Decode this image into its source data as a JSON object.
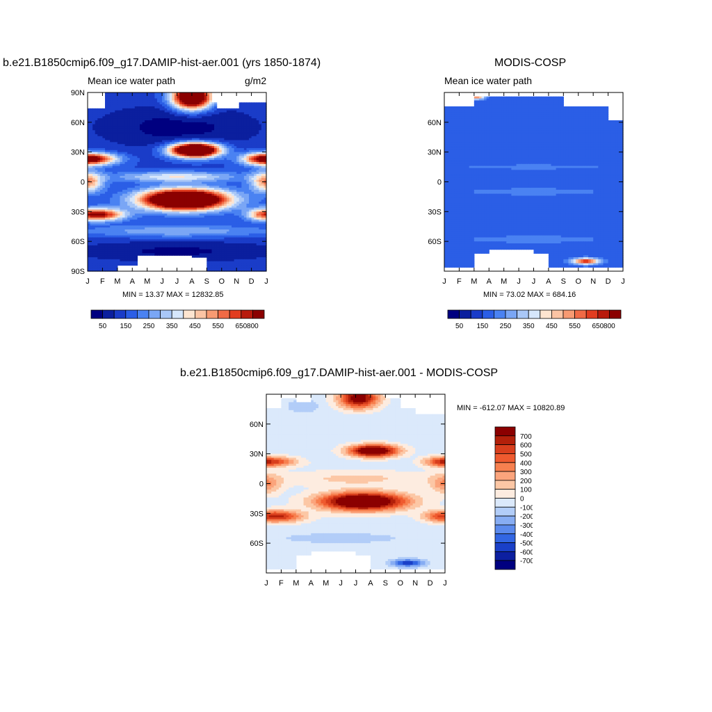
{
  "panels": {
    "model": {
      "title": "b.e21.B1850cmip6.f09_g17.DAMIP-hist-aer.001 (yrs 1850-1874)",
      "left_label": "Mean ice water path",
      "right_label": "g/m2",
      "minmax": "MIN =  13.37 MAX = 12832.85"
    },
    "obs": {
      "title": "MODIS-COSP",
      "left_label": "Mean ice water path",
      "minmax": "MIN =  73.02 MAX = 684.16"
    },
    "diff": {
      "title": "b.e21.B1850cmip6.f09_g17.DAMIP-hist-aer.001 - MODIS-COSP",
      "minmax": "MIN = -612.07 MAX = 10820.89"
    }
  },
  "months": [
    "J",
    "F",
    "M",
    "A",
    "M",
    "J",
    "J",
    "A",
    "S",
    "O",
    "N",
    "D",
    "J"
  ],
  "chart_data": [
    {
      "type": "heatmap",
      "name": "model",
      "x": "month",
      "y": "latitude",
      "ylim": [
        -90,
        90
      ],
      "yticks": [
        "90N",
        "60N",
        "30N",
        "0",
        "30S",
        "60S",
        "90S"
      ],
      "colorbar_labels": [
        "50",
        "150",
        "250",
        "350",
        "450",
        "550",
        "650",
        "800"
      ],
      "levels": [
        50,
        100,
        150,
        200,
        250,
        300,
        350,
        400,
        450,
        500,
        550,
        600,
        650,
        700,
        800
      ],
      "min": 13.37,
      "max": 12832.85
    },
    {
      "type": "heatmap",
      "name": "obs",
      "x": "month",
      "y": "latitude",
      "ylim": [
        -90,
        90
      ],
      "yticks": [
        "60N",
        "30N",
        "0",
        "30S",
        "60S"
      ],
      "colorbar_labels": [
        "50",
        "150",
        "250",
        "350",
        "450",
        "550",
        "650",
        "800"
      ],
      "levels": [
        50,
        100,
        150,
        200,
        250,
        300,
        350,
        400,
        450,
        500,
        550,
        600,
        650,
        700,
        800
      ],
      "min": 73.02,
      "max": 684.16
    },
    {
      "type": "heatmap",
      "name": "diff",
      "x": "month",
      "y": "latitude",
      "ylim": [
        -90,
        90
      ],
      "yticks": [
        "60N",
        "30N",
        "0",
        "30S",
        "60S"
      ],
      "colorbar_labels": [
        "700",
        "600",
        "500",
        "400",
        "300",
        "200",
        "100",
        "0",
        "-100",
        "-200",
        "-300",
        "-400",
        "-500",
        "-600",
        "-700"
      ],
      "min": -612.07,
      "max": 10820.89
    }
  ],
  "colors": {
    "seq": [
      "#000080",
      "#0b1f9e",
      "#1a3cc8",
      "#2b5ee6",
      "#4a82f2",
      "#7aa6f5",
      "#a9c7f7",
      "#d6e6fb",
      "#fde4d0",
      "#fbc4a4",
      "#f79a72",
      "#f06a45",
      "#e23c1f",
      "#b81a0c",
      "#8b0000"
    ],
    "div": [
      "#8b0000",
      "#b3200a",
      "#d93f1d",
      "#ef5a2f",
      "#f7804f",
      "#fba47c",
      "#fcc7a5",
      "#fdece0",
      "#dbe9fb",
      "#b2cdf8",
      "#87adf3",
      "#5b8aed",
      "#3266e3",
      "#1a40c8",
      "#0c1fa0",
      "#000080"
    ]
  }
}
